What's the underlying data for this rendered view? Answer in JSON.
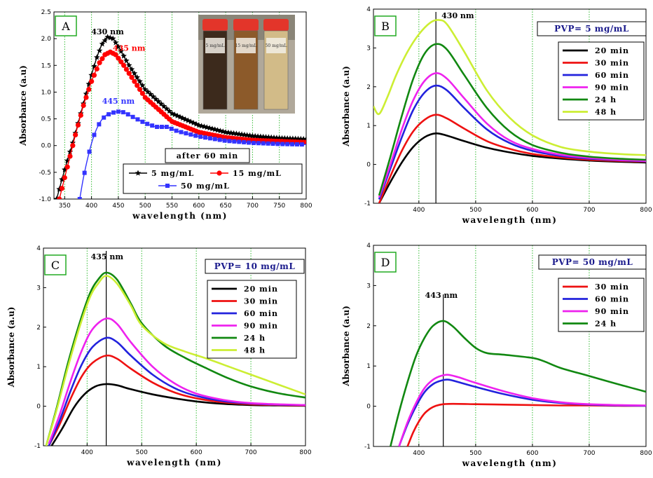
{
  "chart_data": [
    {
      "type": "line",
      "panel_label": "A",
      "xlabel": "wavelength (nm)",
      "ylabel": "Absorbance (a.u)",
      "xlim": [
        330,
        800
      ],
      "ylim": [
        -1.0,
        2.5
      ],
      "xticks": [
        350,
        400,
        450,
        500,
        550,
        600,
        650,
        700,
        750,
        800
      ],
      "yticks": [
        -1.0,
        -0.5,
        0.0,
        0.5,
        1.0,
        1.5,
        2.0,
        2.5
      ],
      "ytick_labels": [
        "-1.0",
        "-0.5",
        "0.0",
        "0.5",
        "1.0",
        "1.5",
        "2.0",
        "2.5"
      ],
      "grid": "vertical dotted green",
      "legend_title": "after 60 min",
      "series": [
        {
          "name": "5 mg/mL",
          "color": "#000000",
          "marker": "star",
          "x": [
            335,
            350,
            365,
            380,
            395,
            410,
            420,
            430,
            440,
            450,
            470,
            500,
            550,
            600,
            650,
            700,
            750,
            800
          ],
          "y": [
            -1.0,
            -0.45,
            0.05,
            0.6,
            1.15,
            1.65,
            1.9,
            2.03,
            2.0,
            1.85,
            1.5,
            1.05,
            0.6,
            0.38,
            0.25,
            0.18,
            0.14,
            0.12
          ]
        },
        {
          "name": "15 mg/mL",
          "color": "#ff0000",
          "marker": "circle",
          "x": [
            340,
            355,
            370,
            385,
            400,
            415,
            425,
            435,
            445,
            460,
            480,
            500,
            550,
            600,
            650,
            700,
            750,
            800
          ],
          "y": [
            -1.0,
            -0.4,
            0.2,
            0.75,
            1.2,
            1.55,
            1.7,
            1.75,
            1.7,
            1.5,
            1.2,
            0.9,
            0.45,
            0.25,
            0.15,
            0.1,
            0.08,
            0.06
          ]
        },
        {
          "name": "50 mg/mL",
          "color": "#3333ff",
          "marker": "square",
          "x": [
            378,
            385,
            395,
            405,
            415,
            425,
            435,
            445,
            455,
            465,
            480,
            500,
            520,
            540,
            560,
            600,
            650,
            700,
            750,
            800
          ],
          "y": [
            -1.0,
            -0.6,
            -0.15,
            0.2,
            0.42,
            0.55,
            0.6,
            0.63,
            0.64,
            0.6,
            0.52,
            0.42,
            0.35,
            0.35,
            0.27,
            0.17,
            0.09,
            0.05,
            0.03,
            0.02
          ]
        }
      ],
      "annotations": [
        {
          "text": "430 nm",
          "x": 430,
          "y": 2.08,
          "color": "#000000"
        },
        {
          "text": "435 nm",
          "x": 470,
          "y": 1.77,
          "color": "#ff0000"
        },
        {
          "text": "445 nm",
          "x": 450,
          "y": 0.78,
          "color": "#3333ff"
        }
      ],
      "inset": {
        "type": "photo",
        "vials": [
          "5 mg/mL",
          "15 mg/mL",
          "50 mg/mL"
        ]
      }
    },
    {
      "type": "line",
      "panel_label": "B",
      "xlabel": "wavelength (nm)",
      "ylabel": "Absorbance (a.u)",
      "xlim": [
        320,
        800
      ],
      "ylim": [
        -1,
        4
      ],
      "xticks": [
        400,
        500,
        600,
        700,
        800
      ],
      "yticks": [
        -1,
        0,
        1,
        2,
        3,
        4
      ],
      "grid": "vertical dotted green",
      "legend_title": "PVP= 5 mg/mL",
      "peak_line": 430,
      "peak_label": "430 nm",
      "series": [
        {
          "name": "20 min",
          "color": "#000000",
          "x": [
            330,
            350,
            370,
            390,
            410,
            430,
            450,
            480,
            520,
            560,
            600,
            650,
            700,
            750,
            800
          ],
          "y": [
            -1.0,
            -0.45,
            0.05,
            0.45,
            0.7,
            0.8,
            0.74,
            0.6,
            0.43,
            0.31,
            0.22,
            0.15,
            0.1,
            0.07,
            0.05
          ]
        },
        {
          "name": "30 min",
          "color": "#ee1111",
          "x": [
            330,
            350,
            370,
            390,
            410,
            430,
            450,
            480,
            520,
            560,
            600,
            650,
            700,
            750,
            800
          ],
          "y": [
            -1.0,
            -0.3,
            0.35,
            0.85,
            1.15,
            1.28,
            1.18,
            0.92,
            0.6,
            0.4,
            0.27,
            0.18,
            0.12,
            0.09,
            0.07
          ]
        },
        {
          "name": "60 min",
          "color": "#2222dd",
          "x": [
            330,
            350,
            370,
            390,
            410,
            430,
            450,
            480,
            520,
            560,
            600,
            650,
            700,
            750,
            800
          ],
          "y": [
            -0.9,
            -0.1,
            0.7,
            1.4,
            1.85,
            2.03,
            1.9,
            1.45,
            0.9,
            0.55,
            0.35,
            0.22,
            0.15,
            0.11,
            0.08
          ]
        },
        {
          "name": "90 min",
          "color": "#ee22ee",
          "x": [
            330,
            350,
            370,
            390,
            410,
            430,
            450,
            480,
            520,
            560,
            600,
            650,
            700,
            750,
            800
          ],
          "y": [
            -0.85,
            0.0,
            0.9,
            1.65,
            2.15,
            2.35,
            2.2,
            1.7,
            1.05,
            0.62,
            0.4,
            0.25,
            0.17,
            0.12,
            0.09
          ]
        },
        {
          "name": "24 h",
          "color": "#118811",
          "x": [
            330,
            350,
            370,
            390,
            410,
            430,
            450,
            480,
            520,
            560,
            600,
            650,
            700,
            750,
            800
          ],
          "y": [
            -0.8,
            0.2,
            1.25,
            2.2,
            2.85,
            3.1,
            2.95,
            2.3,
            1.45,
            0.85,
            0.5,
            0.3,
            0.2,
            0.15,
            0.12
          ]
        },
        {
          "name": "48 h",
          "color": "#ccee33",
          "x": [
            320,
            330,
            345,
            360,
            380,
            400,
            420,
            435,
            450,
            480,
            520,
            560,
            600,
            650,
            700,
            750,
            800
          ],
          "y": [
            1.5,
            1.3,
            1.75,
            2.3,
            2.9,
            3.35,
            3.65,
            3.72,
            3.6,
            2.9,
            1.9,
            1.2,
            0.75,
            0.45,
            0.33,
            0.27,
            0.24
          ]
        }
      ]
    },
    {
      "type": "line",
      "panel_label": "C",
      "xlabel": "wavelength (nm)",
      "ylabel": "Absorbance (a.u)",
      "xlim": [
        320,
        800
      ],
      "ylim": [
        -1,
        4
      ],
      "xticks": [
        400,
        500,
        600,
        700,
        800
      ],
      "yticks": [
        -1,
        0,
        1,
        2,
        3,
        4
      ],
      "grid": "vertical dotted green",
      "legend_title": "PVP= 10 mg/mL",
      "peak_line": 435,
      "peak_label": "435 nm",
      "series": [
        {
          "name": "20 min",
          "color": "#000000",
          "x": [
            335,
            355,
            375,
            395,
            415,
            435,
            455,
            480,
            520,
            560,
            600,
            650,
            700,
            750,
            800
          ],
          "y": [
            -1.0,
            -0.55,
            -0.05,
            0.3,
            0.5,
            0.56,
            0.53,
            0.43,
            0.3,
            0.2,
            0.12,
            0.06,
            0.03,
            0.02,
            0.01
          ]
        },
        {
          "name": "30 min",
          "color": "#ee1111",
          "x": [
            330,
            350,
            370,
            390,
            410,
            435,
            455,
            480,
            520,
            560,
            600,
            650,
            700,
            750,
            800
          ],
          "y": [
            -1.0,
            -0.45,
            0.2,
            0.75,
            1.1,
            1.28,
            1.2,
            0.95,
            0.6,
            0.35,
            0.2,
            0.1,
            0.05,
            0.03,
            0.02
          ]
        },
        {
          "name": "60 min",
          "color": "#2222dd",
          "x": [
            330,
            350,
            370,
            390,
            410,
            435,
            455,
            480,
            520,
            560,
            600,
            650,
            700,
            750,
            800
          ],
          "y": [
            -1.0,
            -0.35,
            0.4,
            1.05,
            1.5,
            1.73,
            1.62,
            1.28,
            0.8,
            0.46,
            0.26,
            0.13,
            0.07,
            0.04,
            0.03
          ]
        },
        {
          "name": "90 min",
          "color": "#ee22ee",
          "x": [
            330,
            350,
            370,
            390,
            410,
            435,
            455,
            480,
            520,
            560,
            600,
            650,
            700,
            750,
            800
          ],
          "y": [
            -0.95,
            -0.2,
            0.65,
            1.4,
            1.95,
            2.22,
            2.08,
            1.62,
            1.0,
            0.58,
            0.32,
            0.16,
            0.08,
            0.05,
            0.03
          ]
        },
        {
          "name": "24 h",
          "color": "#118811",
          "x": [
            325,
            345,
            365,
            385,
            405,
            420,
            435,
            455,
            480,
            500,
            540,
            580,
            620,
            660,
            700,
            750,
            800
          ],
          "y": [
            -1.0,
            0.0,
            1.1,
            2.05,
            2.85,
            3.2,
            3.38,
            3.2,
            2.6,
            2.1,
            1.55,
            1.22,
            0.95,
            0.7,
            0.5,
            0.33,
            0.22
          ]
        },
        {
          "name": "48 h",
          "color": "#ccee33",
          "x": [
            325,
            345,
            365,
            385,
            405,
            420,
            435,
            455,
            480,
            500,
            540,
            580,
            620,
            660,
            700,
            750,
            800
          ],
          "y": [
            -1.0,
            -0.05,
            1.0,
            1.95,
            2.75,
            3.1,
            3.3,
            3.1,
            2.55,
            2.05,
            1.6,
            1.38,
            1.2,
            1.0,
            0.8,
            0.55,
            0.3
          ]
        }
      ]
    },
    {
      "type": "line",
      "panel_label": "D",
      "xlabel": "wavelength (nm)",
      "ylabel": "Absorbance (a.u)",
      "xlim": [
        320,
        800
      ],
      "ylim": [
        -1,
        4
      ],
      "xticks": [
        400,
        500,
        600,
        700,
        800
      ],
      "yticks": [
        -1,
        0,
        1,
        2,
        3,
        4
      ],
      "grid": "vertical dotted green",
      "legend_title": "PVP= 50 mg/mL",
      "peak_line": 443,
      "peak_label": "443 nm",
      "series": [
        {
          "name": "30 min",
          "color": "#ee1111",
          "x": [
            380,
            390,
            400,
            410,
            420,
            430,
            443,
            460,
            500,
            550,
            600,
            650,
            700,
            750,
            800
          ],
          "y": [
            -1.0,
            -0.65,
            -0.38,
            -0.18,
            -0.06,
            0.01,
            0.05,
            0.06,
            0.05,
            0.04,
            0.03,
            0.02,
            0.02,
            0.01,
            0.01
          ]
        },
        {
          "name": "60 min",
          "color": "#2222dd",
          "x": [
            365,
            380,
            395,
            410,
            425,
            440,
            452,
            470,
            500,
            550,
            600,
            650,
            700,
            750,
            800
          ],
          "y": [
            -1.0,
            -0.45,
            0.0,
            0.35,
            0.55,
            0.64,
            0.66,
            0.6,
            0.48,
            0.3,
            0.16,
            0.08,
            0.04,
            0.02,
            0.01
          ]
        },
        {
          "name": "90 min",
          "color": "#ee22ee",
          "x": [
            365,
            380,
            395,
            410,
            425,
            440,
            452,
            470,
            500,
            550,
            600,
            650,
            700,
            750,
            800
          ],
          "y": [
            -1.0,
            -0.4,
            0.08,
            0.45,
            0.66,
            0.76,
            0.78,
            0.72,
            0.58,
            0.37,
            0.2,
            0.1,
            0.05,
            0.03,
            0.02
          ]
        },
        {
          "name": "24 h",
          "color": "#118811",
          "x": [
            350,
            365,
            380,
            395,
            410,
            425,
            443,
            460,
            480,
            500,
            520,
            550,
            600,
            620,
            650,
            700,
            750,
            800
          ],
          "y": [
            -1.0,
            -0.15,
            0.6,
            1.25,
            1.7,
            2.0,
            2.12,
            1.98,
            1.7,
            1.45,
            1.32,
            1.28,
            1.2,
            1.12,
            0.95,
            0.75,
            0.55,
            0.36
          ]
        }
      ]
    }
  ]
}
